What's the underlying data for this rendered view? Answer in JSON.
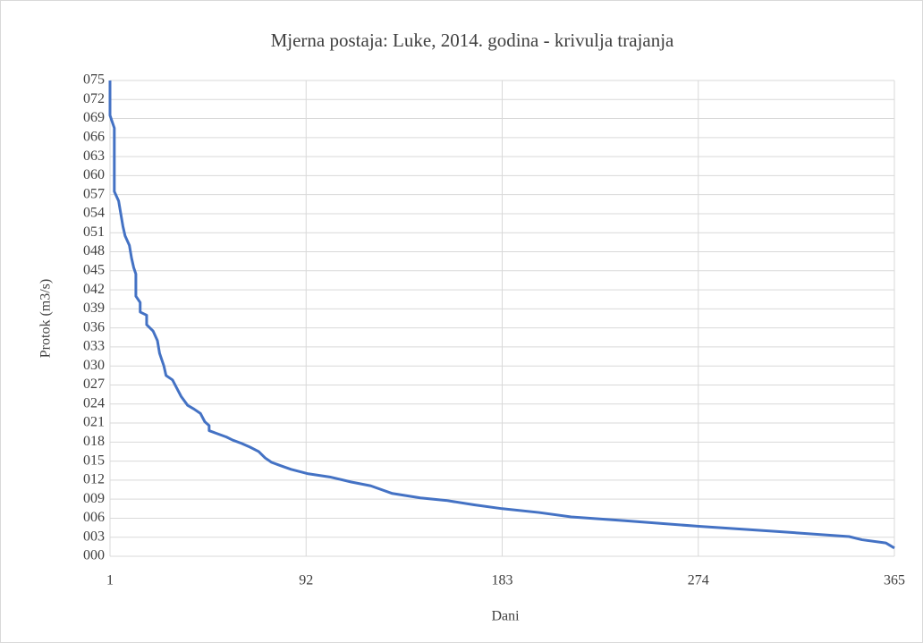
{
  "chart_data": {
    "type": "line",
    "title": "Mjerna postaja: Luke, 2014. godina - krivulja trajanja",
    "x_label": "Dani",
    "y_label": "Protok (m3/s)",
    "color": "#4472c4",
    "grid": true,
    "xlim": [
      1,
      365
    ],
    "xticks": [
      1,
      92,
      183,
      274,
      365
    ],
    "ylim": [
      0,
      75
    ],
    "yticks": [
      {
        "value": 0,
        "label": "000"
      },
      {
        "value": 3,
        "label": "003"
      },
      {
        "value": 6,
        "label": "006"
      },
      {
        "value": 9,
        "label": "009"
      },
      {
        "value": 12,
        "label": "012"
      },
      {
        "value": 15,
        "label": "015"
      },
      {
        "value": 18,
        "label": "018"
      },
      {
        "value": 21,
        "label": "021"
      },
      {
        "value": 24,
        "label": "024"
      },
      {
        "value": 27,
        "label": "027"
      },
      {
        "value": 30,
        "label": "030"
      },
      {
        "value": 33,
        "label": "033"
      },
      {
        "value": 36,
        "label": "036"
      },
      {
        "value": 39,
        "label": "039"
      },
      {
        "value": 42,
        "label": "042"
      },
      {
        "value": 45,
        "label": "045"
      },
      {
        "value": 48,
        "label": "048"
      },
      {
        "value": 51,
        "label": "051"
      },
      {
        "value": 54,
        "label": "054"
      },
      {
        "value": 57,
        "label": "057"
      },
      {
        "value": 60,
        "label": "060"
      },
      {
        "value": 63,
        "label": "063"
      },
      {
        "value": 66,
        "label": "066"
      },
      {
        "value": 69,
        "label": "069"
      },
      {
        "value": 72,
        "label": "072"
      },
      {
        "value": 75,
        "label": "075"
      }
    ],
    "x": [
      1,
      1,
      2,
      3,
      3,
      5,
      6,
      7,
      8,
      10,
      11,
      12,
      13,
      13,
      15,
      15,
      18,
      18,
      21,
      23,
      24,
      26,
      27,
      30,
      32,
      34,
      37,
      40,
      43,
      45,
      47,
      47,
      51,
      55,
      58,
      62,
      66,
      70,
      73,
      76,
      80,
      85,
      93,
      103,
      113,
      122,
      132,
      145,
      157,
      170,
      183,
      200,
      215,
      240,
      275,
      311,
      344,
      350,
      361,
      365
    ],
    "values": [
      75,
      69.5,
      68.5,
      67.5,
      57.5,
      56,
      54,
      52,
      50.5,
      49,
      47,
      45.5,
      44.5,
      41,
      40,
      38.5,
      38,
      36.5,
      35.5,
      34,
      32,
      30,
      28.5,
      27.8,
      26.5,
      25.2,
      23.8,
      23.2,
      22.5,
      21.2,
      20.6,
      19.8,
      19.3,
      18.8,
      18.3,
      17.8,
      17.2,
      16.5,
      15.5,
      14.8,
      14.3,
      13.7,
      13.0,
      12.5,
      11.7,
      11.1,
      9.9,
      9.2,
      8.8,
      8.1,
      7.5,
      6.9,
      6.2,
      5.6,
      4.7,
      3.9,
      3.1,
      2.6,
      2.1,
      1.3
    ]
  }
}
